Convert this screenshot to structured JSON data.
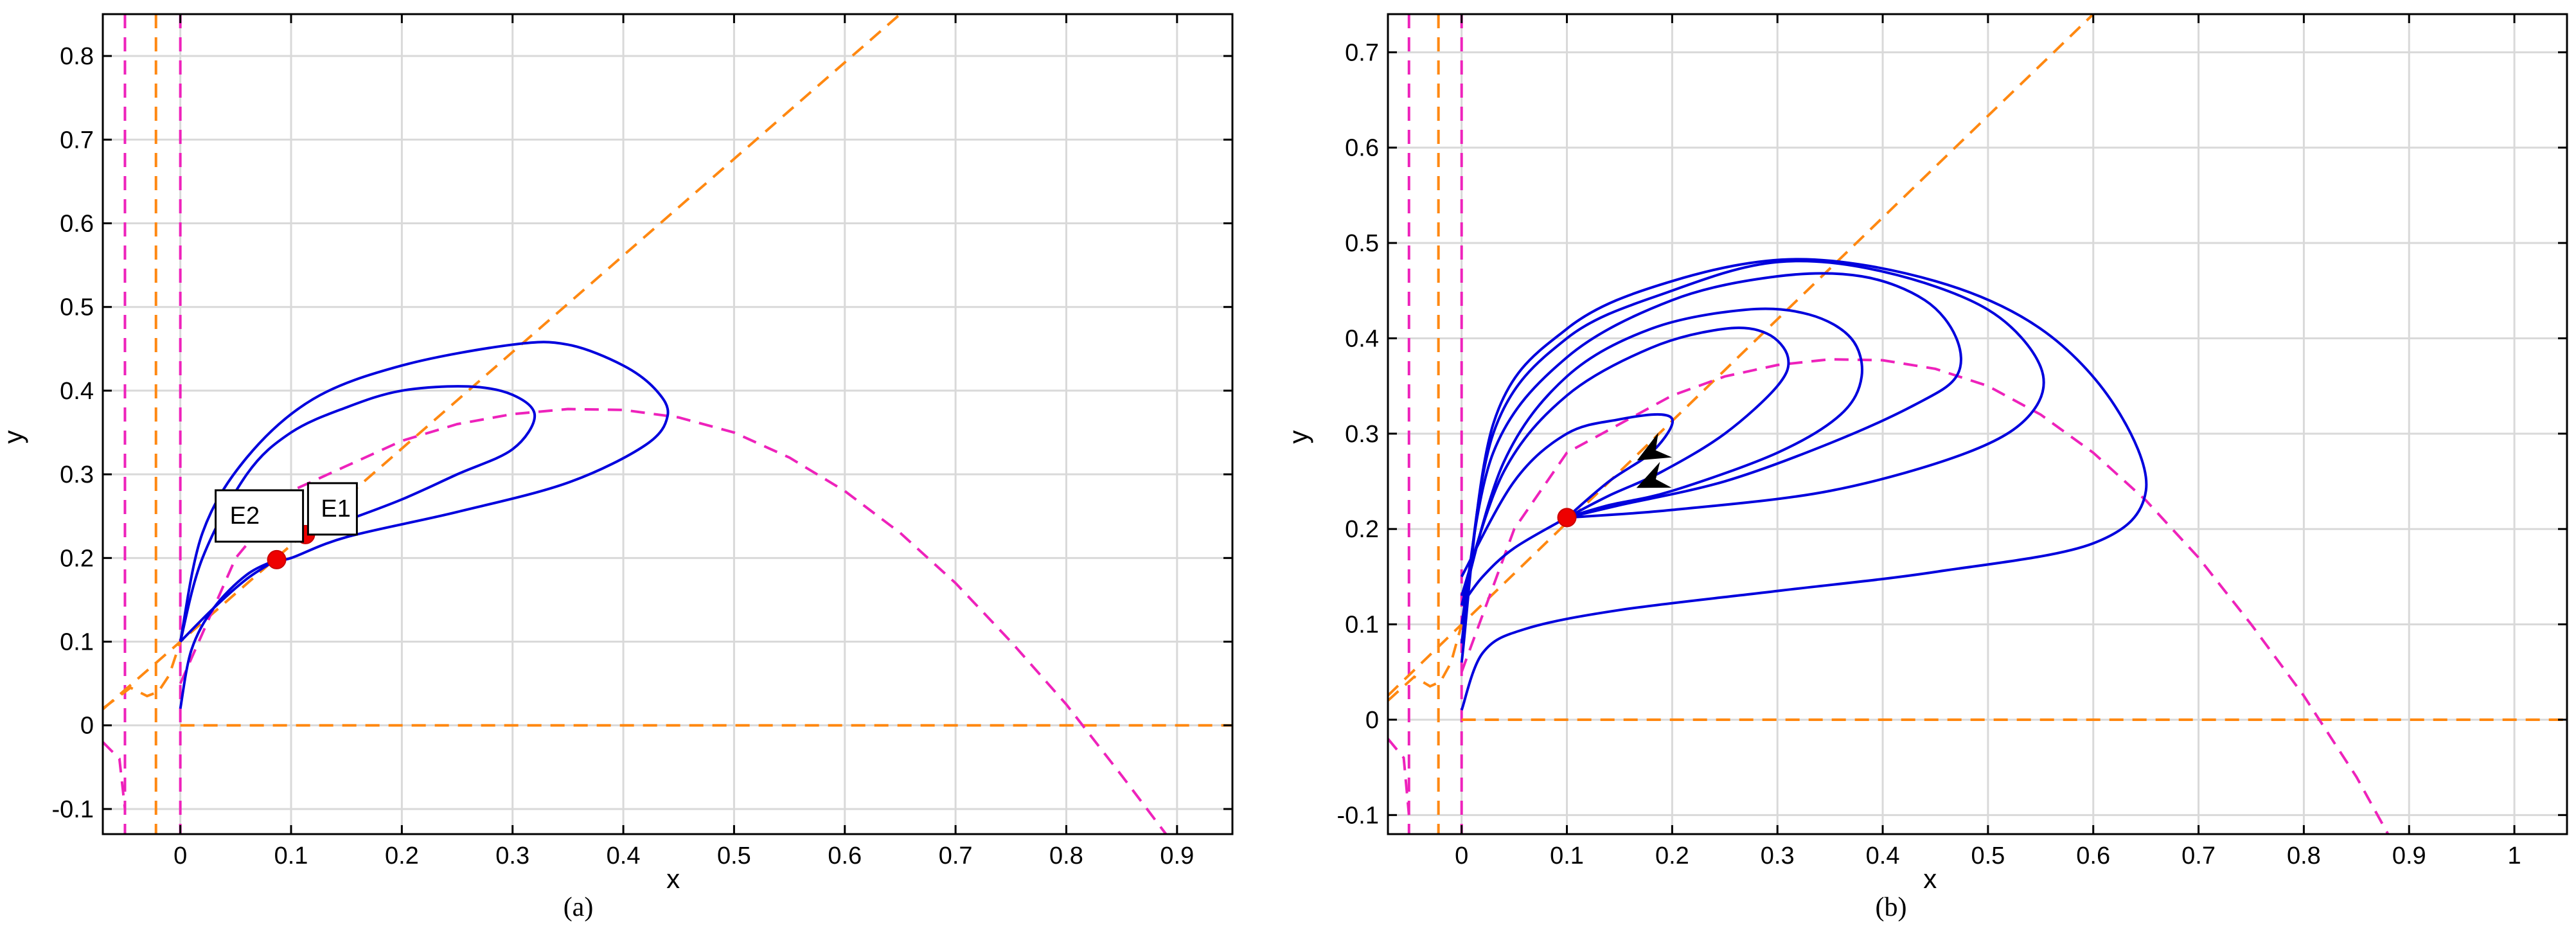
{
  "chart_data": [
    {
      "type": "line",
      "caption": "(a)",
      "xlabel": "x",
      "ylabel": "y",
      "xlim": [
        -0.07,
        0.95
      ],
      "ylim": [
        -0.13,
        0.85
      ],
      "xticks": [
        "0",
        "0.1",
        "0.2",
        "0.3",
        "0.4",
        "0.5",
        "0.6",
        "0.7",
        "0.8",
        "0.9"
      ],
      "yticks": [
        "-0.1",
        "0",
        "0.1",
        "0.2",
        "0.3",
        "0.4",
        "0.5",
        "0.6",
        "0.7",
        "0.8"
      ],
      "grid": true,
      "colors": {
        "trajectory": "#0000dd",
        "nullcline_x": "#ee22bb",
        "nullcline_y": "#ff8811",
        "equilibrium": "#ee0000"
      },
      "equilibria": [
        {
          "label": "E1",
          "x": 0.113,
          "y": 0.228
        },
        {
          "label": "E2",
          "x": 0.087,
          "y": 0.198
        }
      ],
      "trajectories": [
        {
          "points": [
            [
              0.0,
              0.1
            ],
            [
              0.02,
              0.2
            ],
            [
              0.06,
              0.3
            ],
            [
              0.1,
              0.35
            ],
            [
              0.15,
              0.38
            ],
            [
              0.2,
              0.4
            ],
            [
              0.26,
              0.405
            ],
            [
              0.3,
              0.395
            ],
            [
              0.32,
              0.37
            ],
            [
              0.3,
              0.33
            ],
            [
              0.25,
              0.3
            ],
            [
              0.2,
              0.27
            ],
            [
              0.15,
              0.245
            ],
            [
              0.113,
              0.228
            ]
          ]
        },
        {
          "points": [
            [
              0.0,
              0.1
            ],
            [
              0.02,
              0.23
            ],
            [
              0.06,
              0.32
            ],
            [
              0.12,
              0.39
            ],
            [
              0.2,
              0.43
            ],
            [
              0.3,
              0.455
            ],
            [
              0.35,
              0.455
            ],
            [
              0.4,
              0.43
            ],
            [
              0.43,
              0.4
            ],
            [
              0.44,
              0.37
            ],
            [
              0.42,
              0.335
            ],
            [
              0.35,
              0.29
            ],
            [
              0.25,
              0.255
            ],
            [
              0.15,
              0.225
            ],
            [
              0.1,
              0.2
            ],
            [
              0.087,
              0.198
            ]
          ]
        },
        {
          "points": [
            [
              0.0,
              0.02
            ],
            [
              0.01,
              0.09
            ],
            [
              0.03,
              0.14
            ],
            [
              0.06,
              0.18
            ],
            [
              0.087,
              0.198
            ]
          ]
        },
        {
          "points": [
            [
              0.0,
              0.1
            ],
            [
              0.03,
              0.14
            ],
            [
              0.06,
              0.175
            ],
            [
              0.087,
              0.198
            ]
          ]
        }
      ],
      "nullcline_x_curve": [
        [
          0.0,
          0.05
        ],
        [
          0.05,
          0.2
        ],
        [
          0.1,
          0.28
        ],
        [
          0.15,
          0.31
        ],
        [
          0.2,
          0.34
        ],
        [
          0.25,
          0.36
        ],
        [
          0.3,
          0.372
        ],
        [
          0.35,
          0.378
        ],
        [
          0.4,
          0.377
        ],
        [
          0.45,
          0.368
        ],
        [
          0.5,
          0.35
        ],
        [
          0.55,
          0.32
        ],
        [
          0.6,
          0.28
        ],
        [
          0.65,
          0.23
        ],
        [
          0.7,
          0.17
        ],
        [
          0.75,
          0.1
        ],
        [
          0.8,
          0.025
        ],
        [
          0.85,
          -0.06
        ],
        [
          0.89,
          -0.13
        ]
      ],
      "nullcline_y_line": [
        [
          0.0,
          0.1
        ],
        [
          0.65,
          0.85
        ]
      ]
    },
    {
      "type": "line",
      "caption": "(b)",
      "xlabel": "x",
      "ylabel": "y",
      "xlim": [
        -0.07,
        1.05
      ],
      "ylim": [
        -0.12,
        0.74
      ],
      "xticks": [
        "0",
        "0.1",
        "0.2",
        "0.3",
        "0.4",
        "0.5",
        "0.6",
        "0.7",
        "0.8",
        "0.9",
        "1"
      ],
      "yticks": [
        "-0.1",
        "0",
        "0.1",
        "0.2",
        "0.3",
        "0.4",
        "0.5",
        "0.6",
        "0.7"
      ],
      "grid": true,
      "colors": {
        "trajectory": "#0000dd",
        "nullcline_x": "#ee22bb",
        "nullcline_y": "#ff8811",
        "equilibrium": "#ee0000"
      },
      "equilibria": [
        {
          "label": "",
          "x": 0.1,
          "y": 0.212
        }
      ],
      "trajectories": [
        {
          "points": [
            [
              0.0,
              0.15
            ],
            [
              0.05,
              0.25
            ],
            [
              0.1,
              0.3
            ],
            [
              0.15,
              0.315
            ],
            [
              0.19,
              0.32
            ],
            [
              0.2,
              0.31
            ],
            [
              0.18,
              0.28
            ],
            [
              0.14,
              0.25
            ],
            [
              0.1,
              0.212
            ]
          ]
        },
        {
          "points": [
            [
              0.0,
              0.13
            ],
            [
              0.04,
              0.26
            ],
            [
              0.1,
              0.34
            ],
            [
              0.18,
              0.39
            ],
            [
              0.25,
              0.41
            ],
            [
              0.29,
              0.405
            ],
            [
              0.31,
              0.38
            ],
            [
              0.3,
              0.35
            ],
            [
              0.25,
              0.3
            ],
            [
              0.19,
              0.26
            ],
            [
              0.14,
              0.235
            ],
            [
              0.1,
              0.212
            ]
          ]
        },
        {
          "points": [
            [
              0.0,
              0.12
            ],
            [
              0.04,
              0.27
            ],
            [
              0.1,
              0.36
            ],
            [
              0.18,
              0.41
            ],
            [
              0.27,
              0.43
            ],
            [
              0.33,
              0.425
            ],
            [
              0.37,
              0.4
            ],
            [
              0.38,
              0.36
            ],
            [
              0.36,
              0.32
            ],
            [
              0.3,
              0.28
            ],
            [
              0.2,
              0.24
            ],
            [
              0.14,
              0.225
            ],
            [
              0.1,
              0.212
            ]
          ]
        },
        {
          "points": [
            [
              0.0,
              0.1
            ],
            [
              0.03,
              0.28
            ],
            [
              0.1,
              0.38
            ],
            [
              0.2,
              0.44
            ],
            [
              0.3,
              0.465
            ],
            [
              0.38,
              0.465
            ],
            [
              0.44,
              0.44
            ],
            [
              0.47,
              0.4
            ],
            [
              0.47,
              0.36
            ],
            [
              0.43,
              0.33
            ],
            [
              0.35,
              0.29
            ],
            [
              0.25,
              0.25
            ],
            [
              0.15,
              0.225
            ],
            [
              0.1,
              0.212
            ]
          ]
        },
        {
          "points": [
            [
              0.0,
              0.08
            ],
            [
              0.03,
              0.3
            ],
            [
              0.1,
              0.4
            ],
            [
              0.2,
              0.45
            ],
            [
              0.3,
              0.48
            ],
            [
              0.4,
              0.47
            ],
            [
              0.5,
              0.43
            ],
            [
              0.55,
              0.37
            ],
            [
              0.54,
              0.32
            ],
            [
              0.48,
              0.28
            ],
            [
              0.35,
              0.24
            ],
            [
              0.2,
              0.22
            ],
            [
              0.1,
              0.212
            ]
          ]
        },
        {
          "points": [
            [
              0.0,
              0.06
            ],
            [
              0.03,
              0.31
            ],
            [
              0.1,
              0.41
            ],
            [
              0.2,
              0.46
            ],
            [
              0.32,
              0.483
            ],
            [
              0.45,
              0.46
            ],
            [
              0.55,
              0.41
            ],
            [
              0.62,
              0.33
            ],
            [
              0.65,
              0.24
            ],
            [
              0.6,
              0.185
            ],
            [
              0.45,
              0.155
            ],
            [
              0.3,
              0.135
            ],
            [
              0.15,
              0.115
            ],
            [
              0.06,
              0.095
            ],
            [
              0.02,
              0.07
            ],
            [
              0.0,
              0.01
            ]
          ]
        },
        {
          "points": [
            [
              0.0,
              0.12
            ],
            [
              0.02,
              0.15
            ],
            [
              0.05,
              0.18
            ],
            [
              0.1,
              0.212
            ]
          ]
        }
      ],
      "arrows": [
        {
          "x": 0.18,
          "y": 0.28,
          "dx": 1,
          "dy": 0.55
        },
        {
          "x": 0.18,
          "y": 0.25,
          "dx": 1,
          "dy": 0.45
        }
      ],
      "nullcline_x_curve": [
        [
          0.0,
          0.05
        ],
        [
          0.05,
          0.2
        ],
        [
          0.1,
          0.28
        ],
        [
          0.15,
          0.31
        ],
        [
          0.2,
          0.34
        ],
        [
          0.25,
          0.36
        ],
        [
          0.3,
          0.372
        ],
        [
          0.35,
          0.378
        ],
        [
          0.4,
          0.377
        ],
        [
          0.45,
          0.368
        ],
        [
          0.5,
          0.35
        ],
        [
          0.55,
          0.32
        ],
        [
          0.6,
          0.28
        ],
        [
          0.65,
          0.23
        ],
        [
          0.7,
          0.17
        ],
        [
          0.75,
          0.1
        ],
        [
          0.8,
          0.025
        ],
        [
          0.85,
          -0.06
        ],
        [
          0.88,
          -0.12
        ]
      ],
      "nullcline_y_line": [
        [
          0.0,
          0.1
        ],
        [
          0.6,
          0.74
        ]
      ]
    }
  ]
}
